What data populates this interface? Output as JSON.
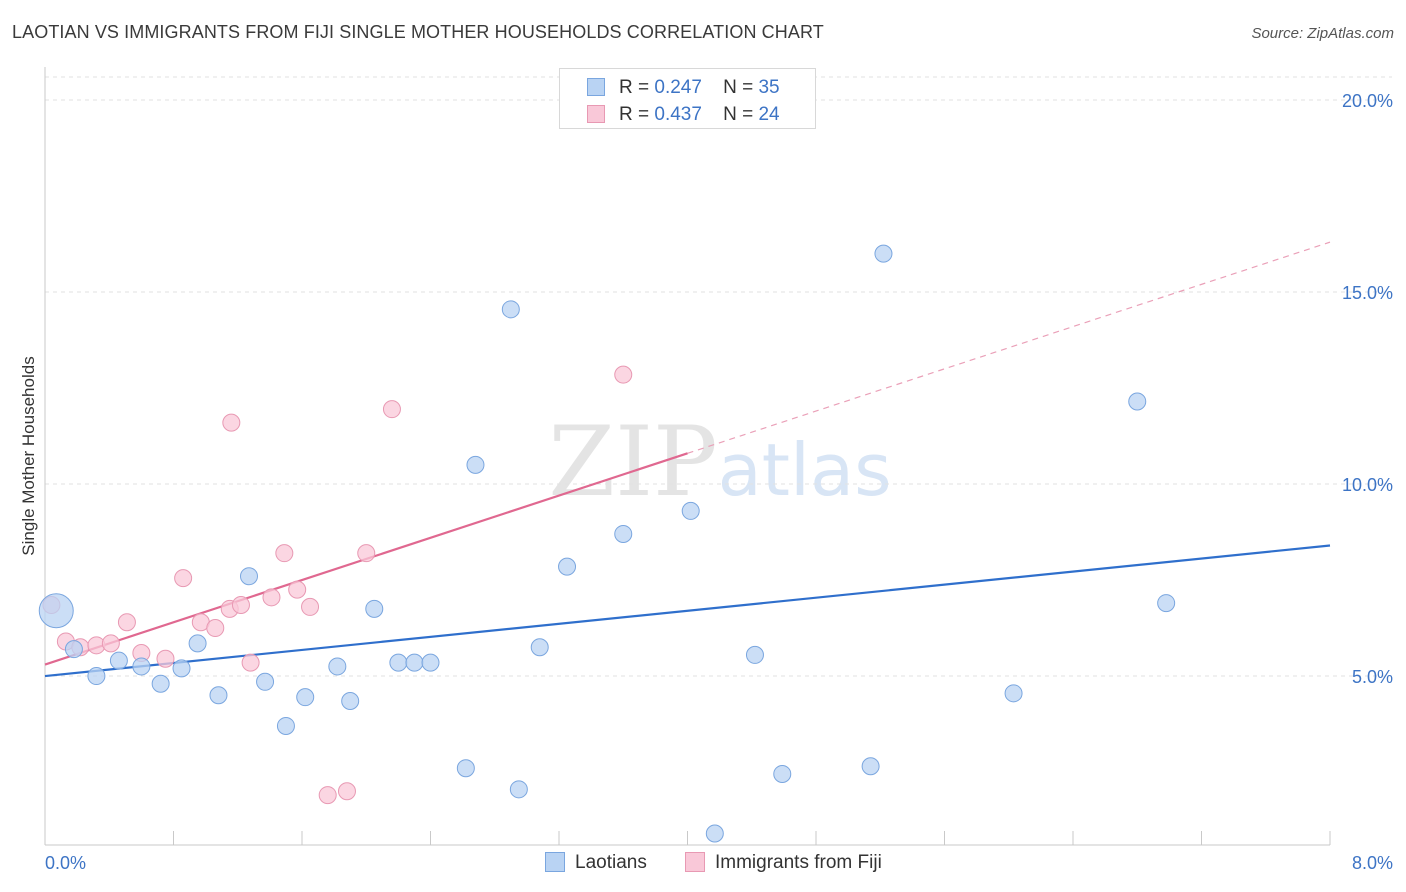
{
  "title": "LAOTIAN VS IMMIGRANTS FROM FIJI SINGLE MOTHER HOUSEHOLDS CORRELATION CHART",
  "source": "Source: ZipAtlas.com",
  "watermark": "ZIPatlas",
  "colors": {
    "blue_fill": "#b9d3f3",
    "blue_stroke": "#7aa6df",
    "blue_line": "#2f6fcc",
    "pink_fill": "#f9c8d8",
    "pink_stroke": "#e899b3",
    "pink_line": "#e06890",
    "tick_text": "#3d74c5"
  },
  "legend": {
    "r_label": "R =",
    "n_label": "N =",
    "rows": [
      {
        "series": "Laotians",
        "r": "0.247",
        "n": "35"
      },
      {
        "series": "Immigrants from Fiji",
        "r": "0.437",
        "n": "24"
      }
    ]
  },
  "chart_data": {
    "type": "scatter",
    "title": "LAOTIAN VS IMMIGRANTS FROM FIJI SINGLE MOTHER HOUSEHOLDS CORRELATION CHART",
    "xlabel": "",
    "ylabel": "Single Mother Households",
    "xlim": [
      0,
      8
    ],
    "ylim": [
      0.6,
      20.6
    ],
    "x_tick_labels": [
      "0.0%",
      "8.0%"
    ],
    "y_ticks": [
      5,
      10,
      15,
      20
    ],
    "y_tick_labels": [
      "5.0%",
      "10.0%",
      "15.0%",
      "20.0%"
    ],
    "grid": true,
    "legend_position": "top-center",
    "series": [
      {
        "name": "Laotians",
        "points": [
          {
            "x": 0.07,
            "y": 6.7,
            "big": true
          },
          {
            "x": 0.18,
            "y": 5.7
          },
          {
            "x": 0.32,
            "y": 5.0
          },
          {
            "x": 0.46,
            "y": 5.4
          },
          {
            "x": 0.6,
            "y": 5.25
          },
          {
            "x": 0.72,
            "y": 4.8
          },
          {
            "x": 0.85,
            "y": 5.2
          },
          {
            "x": 0.95,
            "y": 5.85
          },
          {
            "x": 1.08,
            "y": 4.5
          },
          {
            "x": 1.27,
            "y": 7.6
          },
          {
            "x": 1.37,
            "y": 4.85
          },
          {
            "x": 1.5,
            "y": 3.7
          },
          {
            "x": 1.62,
            "y": 4.45
          },
          {
            "x": 1.82,
            "y": 5.25
          },
          {
            "x": 1.9,
            "y": 4.35
          },
          {
            "x": 2.05,
            "y": 6.75
          },
          {
            "x": 2.2,
            "y": 5.35
          },
          {
            "x": 2.3,
            "y": 5.35
          },
          {
            "x": 2.4,
            "y": 5.35
          },
          {
            "x": 2.62,
            "y": 2.6
          },
          {
            "x": 2.68,
            "y": 10.5
          },
          {
            "x": 2.9,
            "y": 14.55
          },
          {
            "x": 2.95,
            "y": 2.05
          },
          {
            "x": 3.08,
            "y": 5.75
          },
          {
            "x": 3.25,
            "y": 7.85
          },
          {
            "x": 3.6,
            "y": 8.7
          },
          {
            "x": 4.02,
            "y": 9.3
          },
          {
            "x": 4.17,
            "y": 0.9
          },
          {
            "x": 4.42,
            "y": 5.55
          },
          {
            "x": 4.59,
            "y": 2.45
          },
          {
            "x": 5.14,
            "y": 2.65
          },
          {
            "x": 5.22,
            "y": 16.0
          },
          {
            "x": 6.03,
            "y": 4.55
          },
          {
            "x": 6.8,
            "y": 12.15
          },
          {
            "x": 6.98,
            "y": 6.9
          }
        ],
        "trend": {
          "x0": 0,
          "y0": 5.0,
          "x1": 8,
          "y1": 8.4
        }
      },
      {
        "name": "Immigrants from Fiji",
        "points": [
          {
            "x": 0.04,
            "y": 6.85
          },
          {
            "x": 0.13,
            "y": 5.9
          },
          {
            "x": 0.22,
            "y": 5.75
          },
          {
            "x": 0.32,
            "y": 5.8
          },
          {
            "x": 0.41,
            "y": 5.85
          },
          {
            "x": 0.51,
            "y": 6.4
          },
          {
            "x": 0.6,
            "y": 5.6
          },
          {
            "x": 0.75,
            "y": 5.45
          },
          {
            "x": 0.86,
            "y": 7.55
          },
          {
            "x": 0.97,
            "y": 6.4
          },
          {
            "x": 1.06,
            "y": 6.25
          },
          {
            "x": 1.15,
            "y": 6.75
          },
          {
            "x": 1.16,
            "y": 11.6
          },
          {
            "x": 1.22,
            "y": 6.85
          },
          {
            "x": 1.28,
            "y": 5.35
          },
          {
            "x": 1.41,
            "y": 7.05
          },
          {
            "x": 1.49,
            "y": 8.2
          },
          {
            "x": 1.57,
            "y": 7.25
          },
          {
            "x": 1.65,
            "y": 6.8
          },
          {
            "x": 1.76,
            "y": 1.9
          },
          {
            "x": 1.88,
            "y": 2.0
          },
          {
            "x": 2.0,
            "y": 8.2
          },
          {
            "x": 2.16,
            "y": 11.95
          },
          {
            "x": 3.6,
            "y": 12.85
          }
        ],
        "trend": {
          "x0": 0,
          "y0": 5.3,
          "x1": 4.0,
          "y1": 10.8,
          "dash_to_x": 8,
          "dash_to_y": 16.3
        }
      }
    ]
  }
}
